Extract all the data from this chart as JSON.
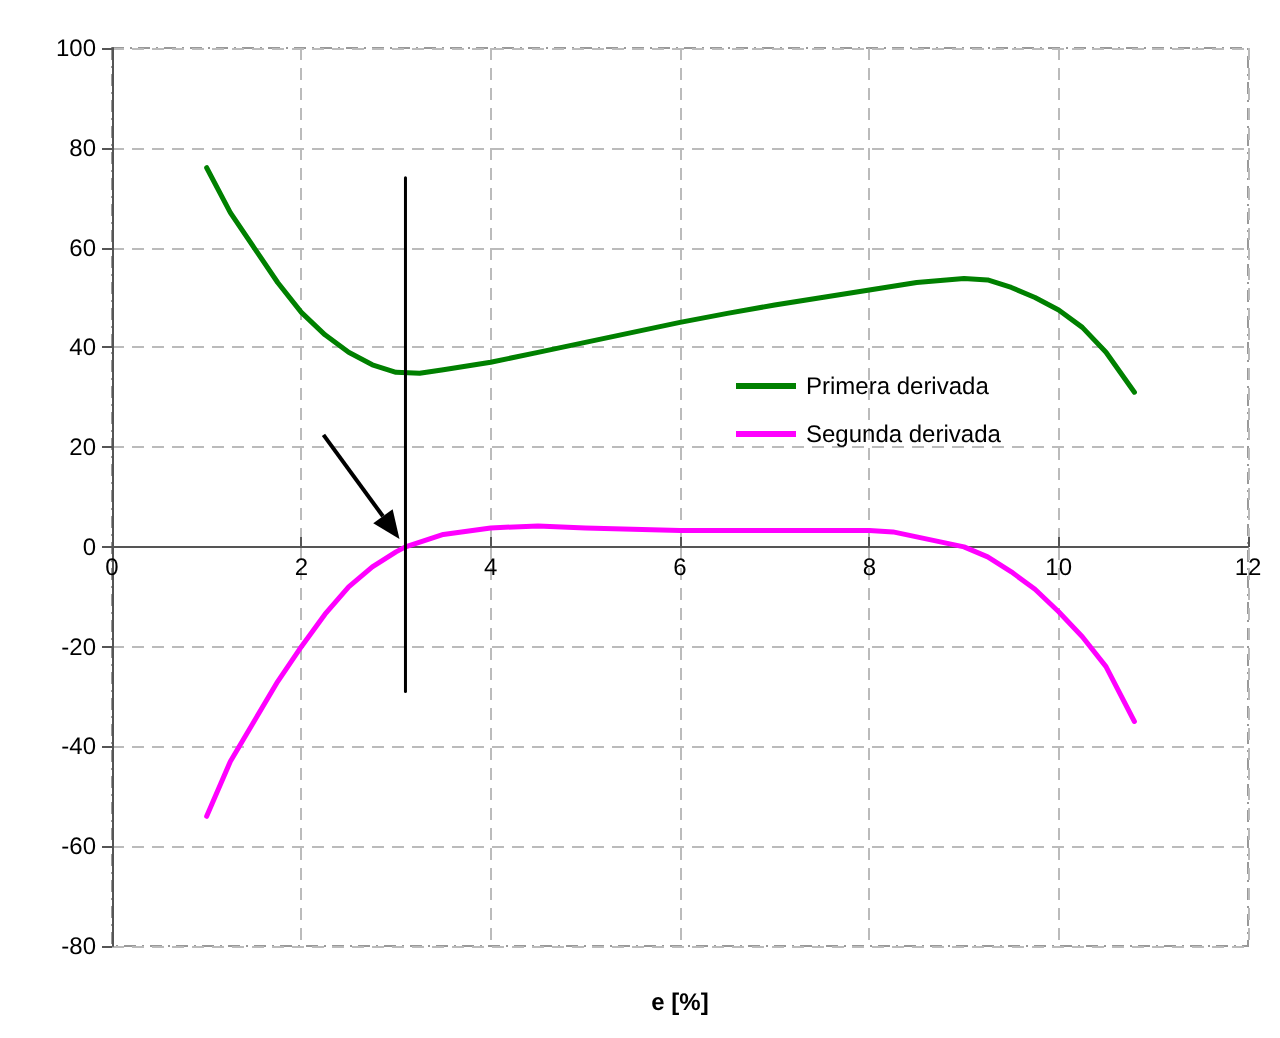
{
  "chart_data": {
    "type": "line",
    "xlabel": "e [%]",
    "xlim": [
      0,
      12
    ],
    "xticks": [
      0,
      2,
      4,
      6,
      8,
      10,
      12
    ],
    "ylim": [
      -80,
      100
    ],
    "yticks": [
      -80,
      -60,
      -40,
      -20,
      0,
      20,
      40,
      60,
      80,
      100
    ],
    "grid": true,
    "legend": "right",
    "marker": "none",
    "line_style": "solid",
    "series": [
      {
        "name": "Primera derivada",
        "color": "#008000",
        "x": [
          1,
          1.25,
          1.5,
          1.75,
          2,
          2.25,
          2.5,
          2.75,
          3,
          3.25,
          3.5,
          4,
          4.5,
          5,
          5.5,
          6,
          6.5,
          7,
          7.5,
          8,
          8.5,
          9,
          9.25,
          9.5,
          9.75,
          10,
          10.25,
          10.5,
          10.8
        ],
        "values": [
          76,
          67,
          60,
          53,
          47,
          42.5,
          39,
          36.5,
          35,
          34.8,
          35.5,
          37,
          39,
          41,
          43,
          45,
          46.8,
          48.5,
          50,
          51.5,
          53,
          53.8,
          53.5,
          52,
          50,
          47.5,
          44,
          39,
          31
        ]
      },
      {
        "name": "Segunda derivada",
        "color": "#ff00ff",
        "x": [
          1,
          1.25,
          1.5,
          1.75,
          2,
          2.25,
          2.5,
          2.75,
          3,
          3.1,
          3.5,
          4,
          4.5,
          5,
          6,
          7,
          8,
          8.25,
          8.5,
          8.75,
          9,
          9.25,
          9.5,
          9.75,
          10,
          10.25,
          10.5,
          10.8
        ],
        "values": [
          -54,
          -43,
          -35,
          -27,
          -20,
          -13.5,
          -8,
          -4,
          -1,
          0,
          2.5,
          3.8,
          4.2,
          3.8,
          3.3,
          3.3,
          3.3,
          3,
          2,
          1,
          0,
          -2,
          -5,
          -8.5,
          -13,
          -18,
          -24,
          -35
        ]
      },
      {
        "color": "#000000",
        "x": [
          3.1,
          3.1
        ],
        "values": [
          -29,
          74
        ]
      }
    ]
  }
}
